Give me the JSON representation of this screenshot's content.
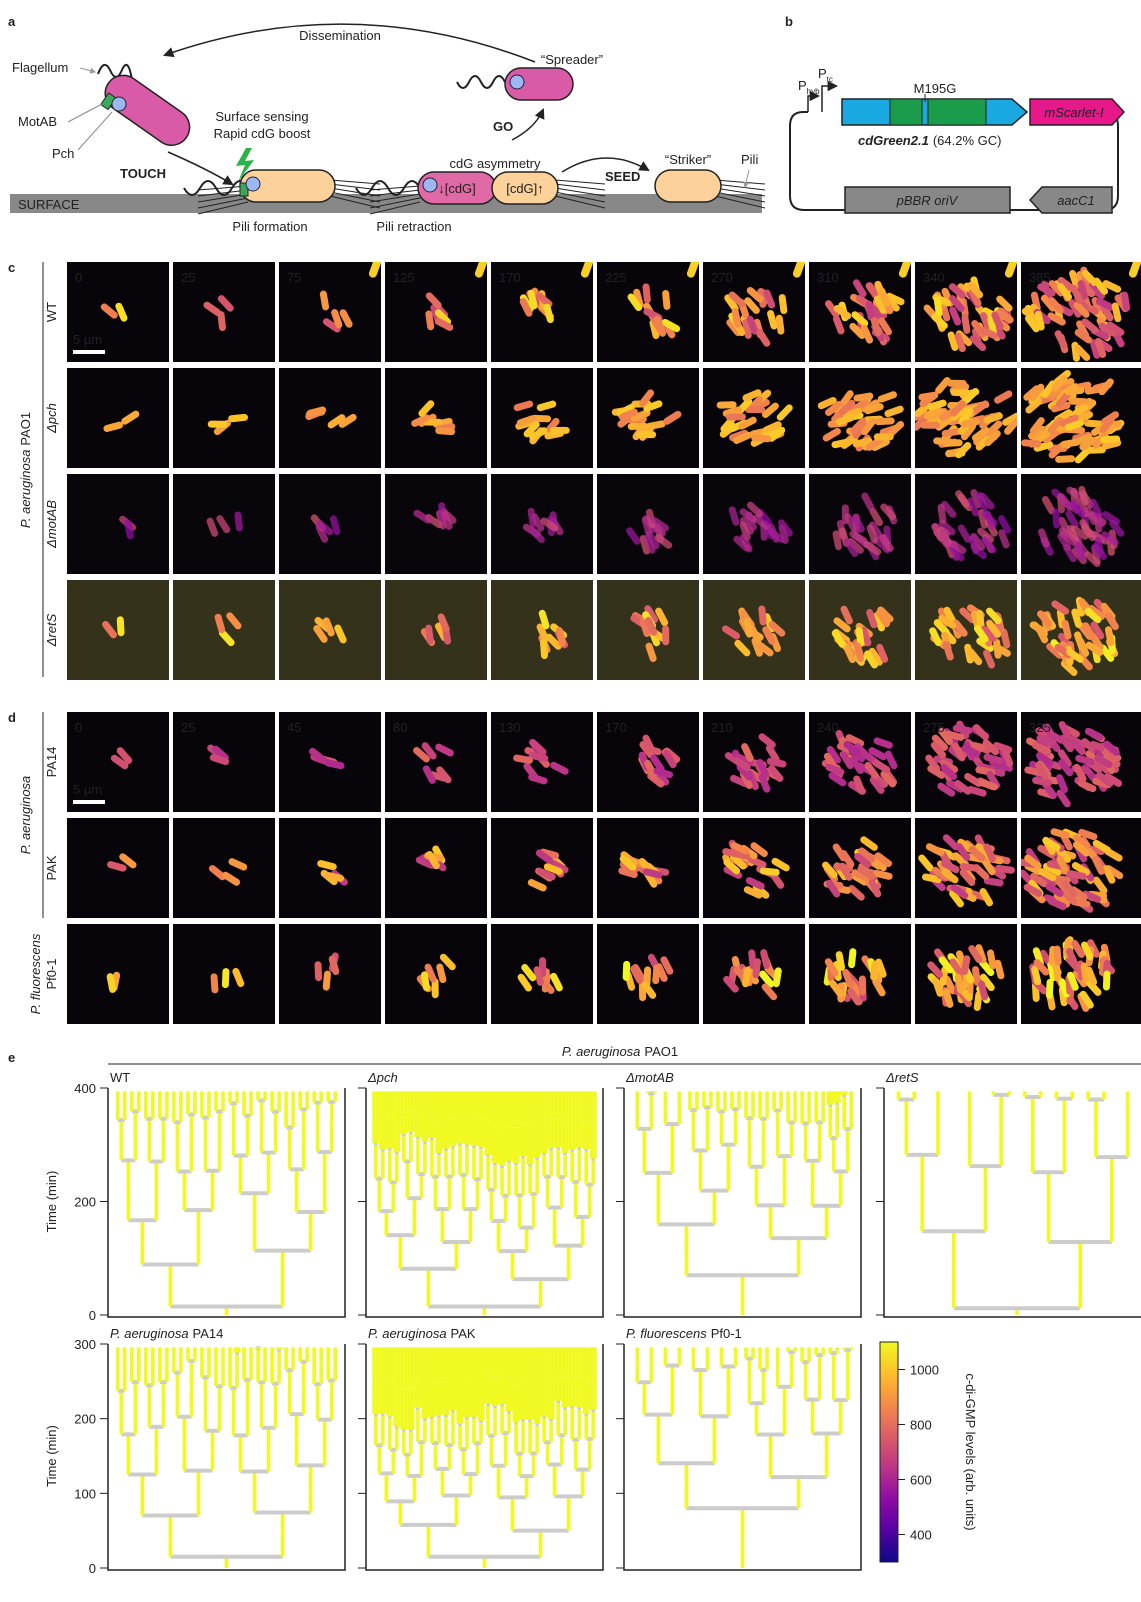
{
  "panel_a": {
    "label": "a",
    "dissemination": "Dissemination",
    "flagellum": "Flagellum",
    "motab": "MotAB",
    "pch": "Pch",
    "surface_sensing": "Surface sensing",
    "cdg_boost": "Rapid cdG boost",
    "touch": "TOUCH",
    "spreader": "“Spreader”",
    "go": "GO",
    "cdg_asymmetry": "cdG asymmetry",
    "low_cdg": "↓[cdG]",
    "high_cdg": "[cdG]↑",
    "seed": "SEED",
    "striker": "“Striker”",
    "pili": "Pili",
    "surface": "SURFACE",
    "pili_formation": "Pili formation",
    "pili_retraction": "Pili retraction"
  },
  "panel_b": {
    "label": "b",
    "p_hyb": "P",
    "p_hyb_sub": "hyb",
    "p_tc": "P",
    "p_tc_sub": "tc",
    "mutation": "M195G",
    "reporter": "mScarlet-I",
    "sensor": "cdGreen2.1",
    "gc": "(64.2% GC)",
    "origin": "pBBR oriV",
    "resistance": "aacC1"
  },
  "panel_c": {
    "label": "c",
    "species": "P. aeruginosa",
    "strain": "PAO1",
    "scale_bar": "5 µm",
    "times": [
      0,
      25,
      75,
      125,
      170,
      225,
      270,
      310,
      340,
      385
    ],
    "rows": [
      "WT",
      "Δpch",
      "ΔmotAB",
      "ΔretS"
    ]
  },
  "panel_d": {
    "label": "d",
    "species": "P. aeruginosa",
    "species2": "P. fluorescens",
    "scale_bar": "5 µm",
    "times": [
      0,
      25,
      45,
      80,
      130,
      170,
      210,
      240,
      275,
      325
    ],
    "rows": [
      "PA14",
      "PAK",
      "Pf0-1"
    ]
  },
  "panel_e": {
    "label": "e",
    "group_species": "P. aeruginosa",
    "group_strain": "PAO1",
    "y_axis_label": "Time (min)",
    "top": {
      "ylim": [
        0,
        400
      ],
      "yticks": [
        0,
        200,
        400
      ],
      "plots": [
        "WT",
        "Δpch",
        "ΔmotAB",
        "ΔretS"
      ]
    },
    "bottom": {
      "ylim": [
        0,
        300
      ],
      "yticks": [
        0,
        100,
        200,
        300
      ],
      "plots": [
        {
          "species": "P. aeruginosa",
          "strain": "PA14"
        },
        {
          "species": "P. aeruginosa",
          "strain": "PAK"
        },
        {
          "species": "P. fluorescens",
          "strain": "Pf0-1"
        }
      ]
    },
    "colorbar": {
      "label": "c-di-GMP levels (arb. units)",
      "clim": [
        300,
        1100
      ],
      "ticks": [
        400,
        600,
        800,
        1000
      ]
    }
  }
}
